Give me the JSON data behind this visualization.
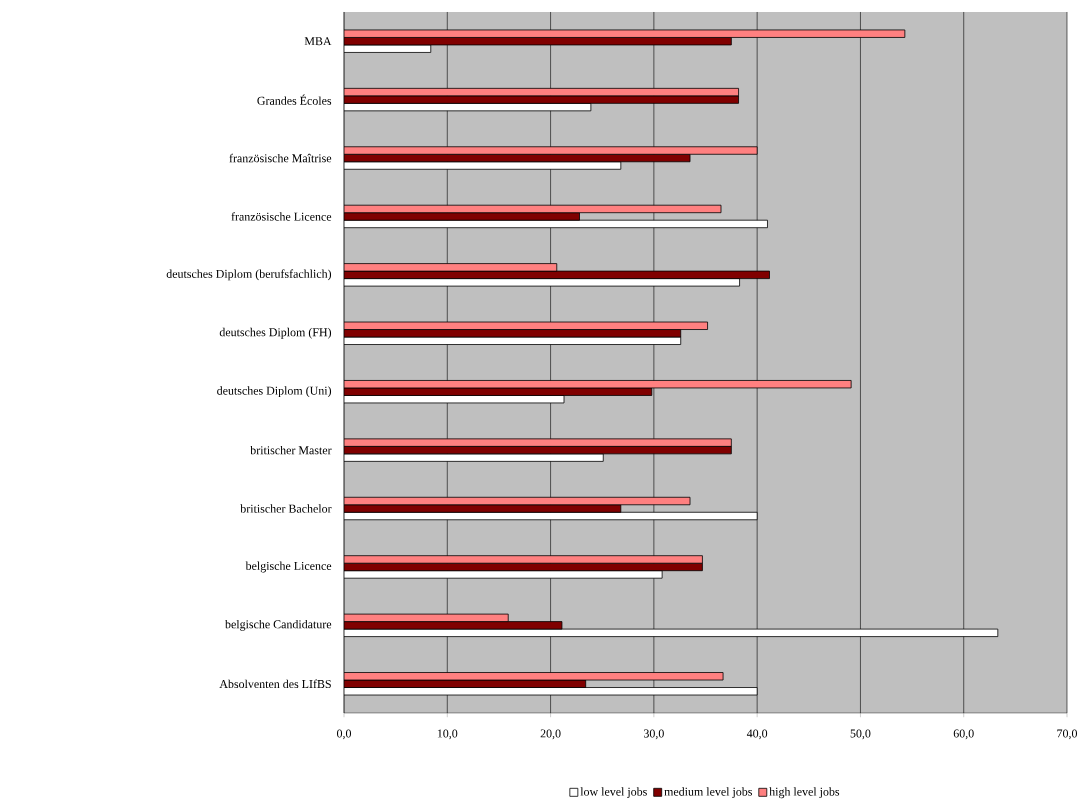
{
  "chart_data": {
    "type": "bar",
    "orientation": "horizontal",
    "categories": [
      "MBA",
      "Grandes Écoles",
      "französische Maîtrise",
      "französische Licence",
      "deutsches Diplom (berufsfachlich)",
      "deutsches Diplom (FH)",
      "deutsches Diplom (Uni)",
      "britischer Master",
      "britischer Bachelor",
      "belgische Licence",
      "belgische Candidature",
      "Absolventen des LIfBS"
    ],
    "series": [
      {
        "name": "low level jobs",
        "color": "#ffffff",
        "values": [
          8.4,
          23.9,
          26.8,
          41.0,
          38.3,
          32.6,
          21.3,
          25.1,
          40.0,
          30.8,
          63.3,
          40.0
        ]
      },
      {
        "name": "medium level jobs",
        "color": "#800000",
        "values": [
          37.5,
          38.2,
          33.5,
          22.8,
          41.2,
          32.6,
          29.8,
          37.5,
          26.8,
          34.7,
          21.1,
          23.4
        ]
      },
      {
        "name": "high level jobs",
        "color": "#ff8080",
        "values": [
          54.3,
          38.2,
          40.0,
          36.5,
          20.6,
          35.2,
          49.1,
          37.5,
          33.5,
          34.7,
          15.9,
          36.7
        ]
      }
    ],
    "xlim": [
      0,
      70
    ],
    "xticks": [
      {
        "value": 0,
        "label": "0,0"
      },
      {
        "value": 10,
        "label": "10,0"
      },
      {
        "value": 20,
        "label": "20,0"
      },
      {
        "value": 30,
        "label": "30,0"
      },
      {
        "value": 40,
        "label": "40,0"
      },
      {
        "value": 50,
        "label": "50,0"
      },
      {
        "value": 60,
        "label": "60,0"
      },
      {
        "value": 70,
        "label": "70,0"
      }
    ],
    "grid": "x",
    "legend": "bottom"
  }
}
